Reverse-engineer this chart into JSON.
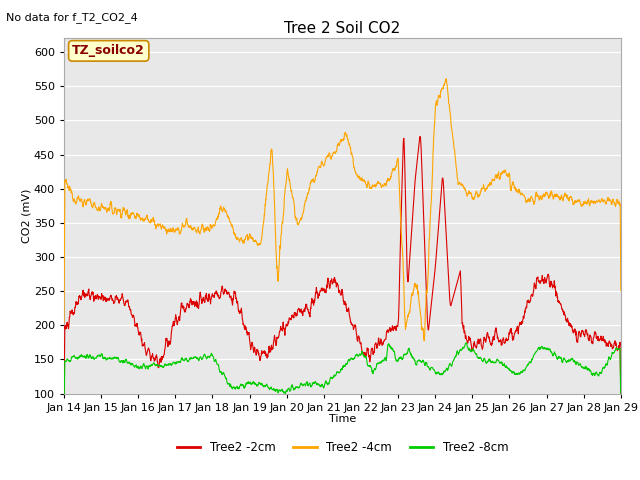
{
  "title": "Tree 2 Soil CO2",
  "subtitle": "No data for f_T2_CO2_4",
  "xlabel": "Time",
  "ylabel": "CO2 (mV)",
  "ylim": [
    100,
    620
  ],
  "yticks": [
    100,
    150,
    200,
    250,
    300,
    350,
    400,
    450,
    500,
    550,
    600
  ],
  "fig_bg_color": "#ffffff",
  "plot_bg_color": "#e8e8e8",
  "line_colors": {
    "2cm": "#dd0000",
    "4cm": "#ffa500",
    "8cm": "#00cc00"
  },
  "legend_labels": [
    "Tree2 -2cm",
    "Tree2 -4cm",
    "Tree2 -8cm"
  ],
  "xtick_labels": [
    "Jan 14",
    "Jan 15",
    "Jan 16",
    "Jan 17",
    "Jan 18",
    "Jan 19",
    "Jan 20",
    "Jan 21",
    "Jan 22",
    "Jan 23",
    "Jan 24",
    "Jan 25",
    "Jan 26",
    "Jan 27",
    "Jan 28",
    "Jan 29"
  ],
  "annotation_box": "TZ_soilco2",
  "annotation_box_facecolor": "#ffffcc",
  "annotation_box_edgecolor": "#cc8800",
  "annotation_text_color": "#880000",
  "grid_color": "#ffffff",
  "title_fontsize": 11,
  "label_fontsize": 8,
  "tick_fontsize": 8
}
